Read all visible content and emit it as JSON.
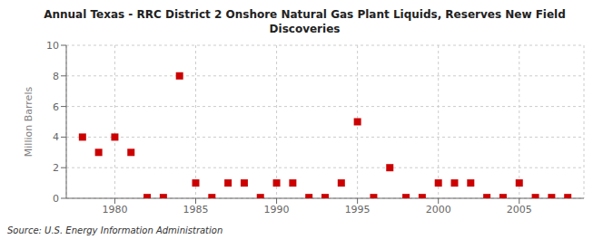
{
  "chart_data": {
    "type": "scatter",
    "title": "Annual Texas - RRC District 2 Onshore Natural Gas Plant Liquids, Reserves New Field\nDiscoveries",
    "ylabel": "Million Barrels",
    "source": "Source: U.S. Energy Information Administration",
    "x": [
      1978,
      1979,
      1980,
      1981,
      1982,
      1983,
      1984,
      1985,
      1986,
      1987,
      1988,
      1989,
      1990,
      1991,
      1992,
      1993,
      1994,
      1995,
      1996,
      1997,
      1998,
      1999,
      2000,
      2001,
      2002,
      2003,
      2004,
      2005,
      2006,
      2007,
      2008
    ],
    "values": [
      4.0,
      3.0,
      4.0,
      3.0,
      0.05,
      0.05,
      8.0,
      1.0,
      0.05,
      1.0,
      1.0,
      0.05,
      1.0,
      1.0,
      0.05,
      0.05,
      1.0,
      5.0,
      0.05,
      2.0,
      0.05,
      0.05,
      1.0,
      1.0,
      1.0,
      0.05,
      0.05,
      1.0,
      0.05,
      0.05,
      0.05
    ],
    "color": "#cc0000",
    "marker": "square",
    "xlim": [
      1977,
      2009
    ],
    "ylim": [
      0,
      10
    ],
    "xticks": [
      1980,
      1985,
      1990,
      1995,
      2000,
      2005
    ],
    "yticks": [
      0,
      2,
      4,
      6,
      8,
      10
    ],
    "grid": true
  }
}
